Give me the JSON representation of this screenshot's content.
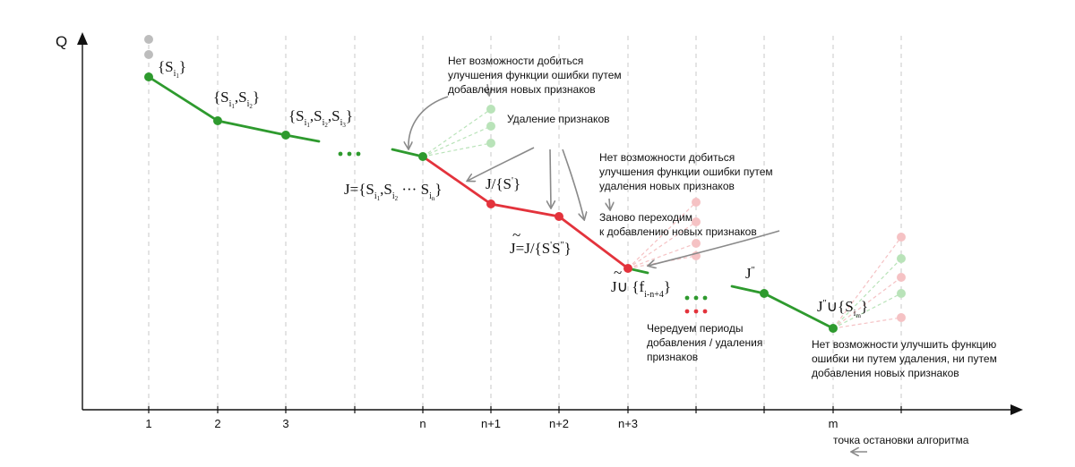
{
  "axes": {
    "y_label": "Q",
    "x_ticks": [
      "1",
      "2",
      "3",
      "n",
      "n+1",
      "n+2",
      "n+3",
      "m"
    ]
  },
  "colors": {
    "add": "#2e9a2e",
    "remove": "#e3333c",
    "grid": "#c8c8c8",
    "axis": "#111111",
    "faded_green": "#b9e3b9",
    "faded_red": "#f5c2c4",
    "faded_gray": "#bdbdbd",
    "arrow": "#8a8a8a"
  },
  "labels": {
    "s1": {
      "main": "{S",
      "sub": "i",
      "ssub": "1",
      "end": "}"
    },
    "s12": {
      "text": "{S_i1, S_i2}"
    },
    "s123": {
      "text": "{S_i1, S_i2, S_i3}"
    },
    "jn": {
      "text": "J={S_i1, S_i2 ··· S_in}"
    },
    "jmS": {
      "main": "J/{S",
      "sup": "'",
      "end": "}"
    },
    "jt": {
      "main": "J=J/{S",
      "s1": "'",
      "mid": "S",
      "s2": "''",
      "end": "}"
    },
    "jtu": {
      "main": "J∪ {f",
      "sub": "i-n+4",
      "end": "}"
    },
    "jpp": {
      "main": "J",
      "sup": "''"
    },
    "jppu": {
      "main": "J",
      "sup": "''",
      "union": "∪{S",
      "sub": "i",
      "ssub": "m",
      "end": "}"
    }
  },
  "notes": {
    "no_add": [
      "Нет возможности добиться",
      "улучшения функции ошибки путем",
      "добавления новых признаков"
    ],
    "removal": "Удаление признаков",
    "no_remove": [
      "Нет возможности добиться",
      "улучшения функции ошибки путем",
      "удаления новых признаков"
    ],
    "back_to_add": [
      "Заново переходим",
      "к добавлению новых признаков"
    ],
    "alternate": [
      "Чередуем периоды",
      "добавления / удаления",
      "признаков"
    ],
    "no_improve": [
      "Нет возможности улучшить функцию",
      "ошибки ни путем удаления, ни путем",
      "добавления новых признаков"
    ],
    "stop_point": "точка остановки алгоритма"
  }
}
